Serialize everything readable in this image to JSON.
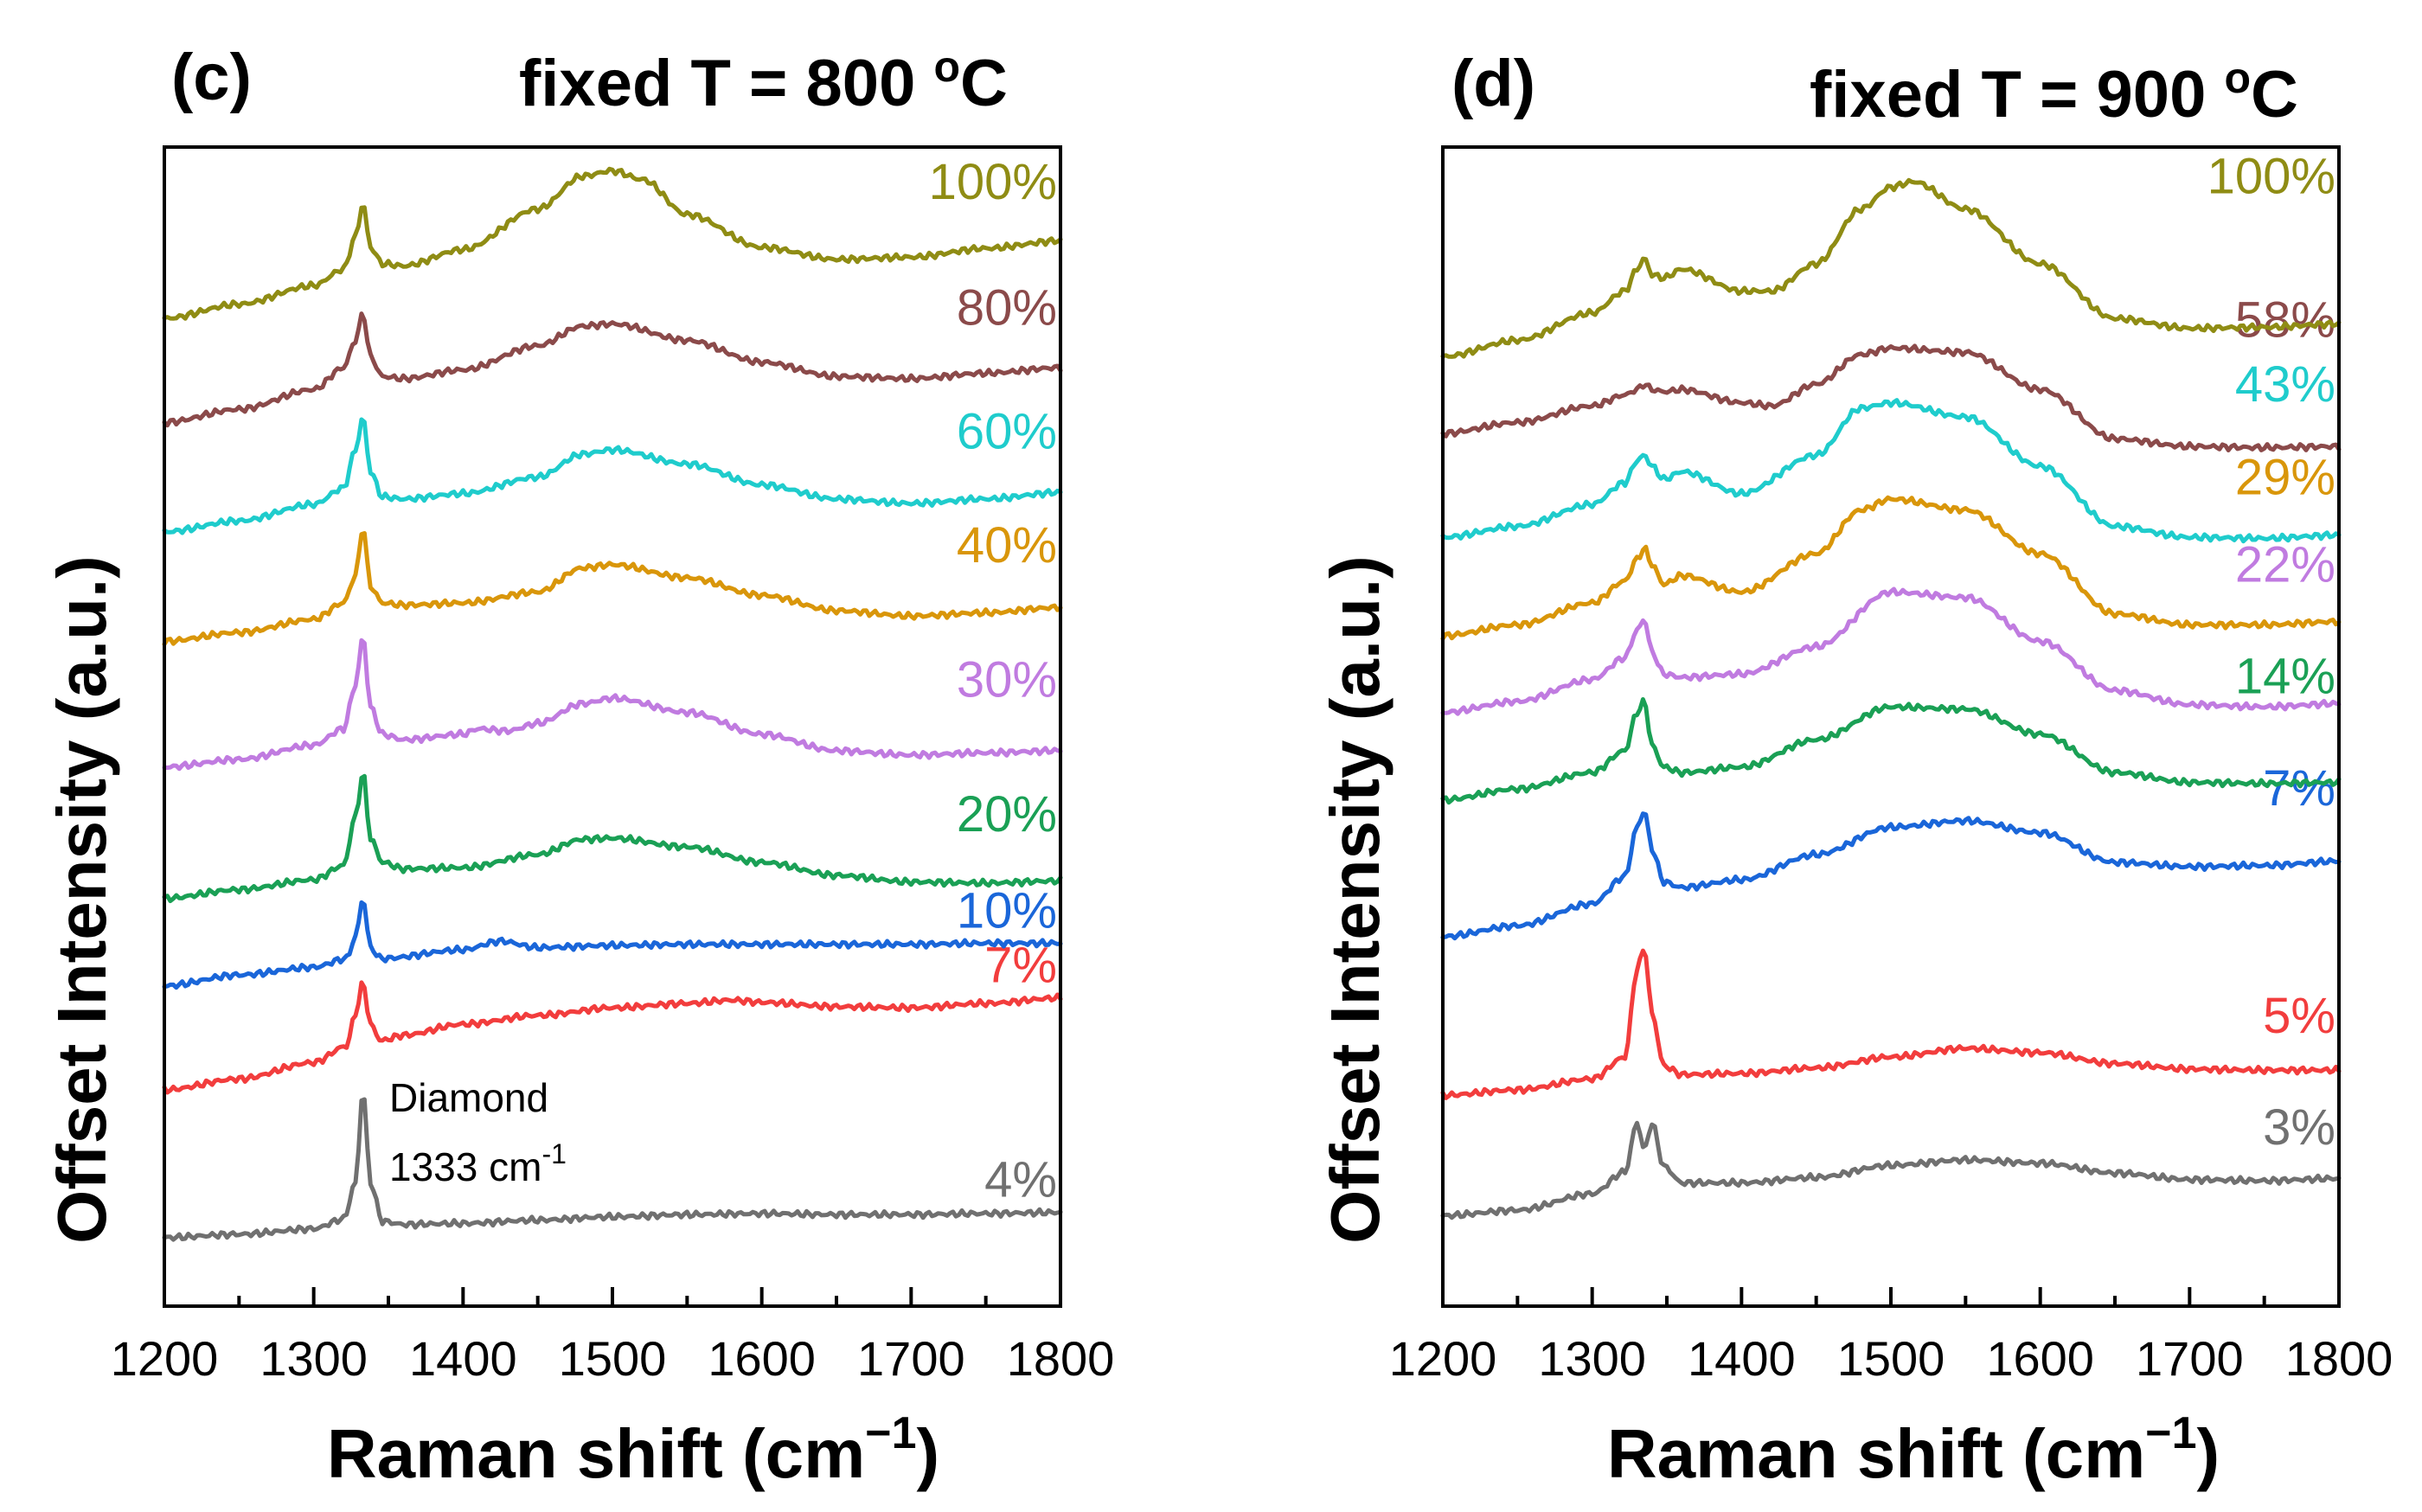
{
  "chart_data": [
    {
      "type": "line",
      "panel": "(c)",
      "title": "fixed T = 800 °C",
      "title_prefix": "fixed T = 800 ",
      "title_deg": "o",
      "title_unit": "C",
      "xlabel": "Raman shift (cm⁻¹)",
      "xlabel_base": "Raman shift (cm",
      "xlabel_sup": "−1",
      "xlabel_close": ")",
      "ylabel": "Offset Intensity (a.u.)",
      "xlim": [
        1200,
        1800
      ],
      "ylim": [
        0,
        100
      ],
      "xticks": [
        1200,
        1300,
        1400,
        1500,
        1600,
        1700,
        1800
      ],
      "annotation": {
        "line1": "Diamond",
        "line2_base": "1333 cm",
        "line2_sup": "-1"
      },
      "series": [
        {
          "name": "4%",
          "color": "#707070",
          "x": [
            1200,
            1250,
            1300,
            1320,
            1328,
            1333,
            1338,
            1346,
            1360,
            1400,
            1450,
            1500,
            1550,
            1600,
            1650,
            1700,
            1750,
            1800
          ],
          "y": [
            3.5,
            3.8,
            4.3,
            5.2,
            8.5,
            17.0,
            8.5,
            5.0,
            4.7,
            4.8,
            5.1,
            5.4,
            5.6,
            5.7,
            5.6,
            5.6,
            5.7,
            5.8
          ]
        },
        {
          "name": "7%",
          "color": "#f23d3d",
          "x": [
            1200,
            1250,
            1300,
            1322,
            1328,
            1333,
            1338,
            1345,
            1360,
            1400,
            1450,
            1500,
            1550,
            1580,
            1600,
            1650,
            1700,
            1750,
            1800
          ],
          "y": [
            17.0,
            18.0,
            19.5,
            21.0,
            24.0,
            26.8,
            23.0,
            21.5,
            22.0,
            23.0,
            23.8,
            24.5,
            24.9,
            25.2,
            25.0,
            24.6,
            24.5,
            24.9,
            25.4
          ]
        },
        {
          "name": "10%",
          "color": "#1a66d9",
          "x": [
            1200,
            1250,
            1300,
            1322,
            1328,
            1333,
            1338,
            1345,
            1400,
            1425,
            1450,
            1500,
            1550,
            1600,
            1650,
            1700,
            1750,
            1800
          ],
          "y": [
            26.5,
            27.5,
            28.2,
            29.0,
            31.0,
            34.5,
            30.0,
            29.0,
            29.8,
            30.6,
            30.0,
            30.2,
            30.3,
            30.3,
            30.3,
            30.3,
            30.4,
            30.4
          ]
        },
        {
          "name": "20%",
          "color": "#1aa055",
          "x": [
            1200,
            1250,
            1300,
            1320,
            1328,
            1333,
            1338,
            1346,
            1360,
            1400,
            1450,
            1480,
            1500,
            1550,
            1600,
            1650,
            1700,
            1750,
            1800
          ],
          "y": [
            34.5,
            35.3,
            36.2,
            37.5,
            42.0,
            46.0,
            40.0,
            37.8,
            37.2,
            37.3,
            38.5,
            39.9,
            40.0,
            39.2,
            37.8,
            36.6,
            36.0,
            35.9,
            36.1
          ]
        },
        {
          "name": "30%",
          "color": "#c07be0",
          "x": [
            1200,
            1250,
            1300,
            1320,
            1328,
            1333,
            1338,
            1346,
            1360,
            1400,
            1410,
            1430,
            1450,
            1480,
            1500,
            1550,
            1600,
            1650,
            1700,
            1750,
            1800
          ],
          "y": [
            46.5,
            47.2,
            48.5,
            50.0,
            54.0,
            58.5,
            52.0,
            49.5,
            49.0,
            49.5,
            50.0,
            49.8,
            50.5,
            52.3,
            52.8,
            51.5,
            49.5,
            48.0,
            47.6,
            47.8,
            48.0
          ]
        },
        {
          "name": "40%",
          "color": "#d9960a",
          "x": [
            1200,
            1250,
            1300,
            1320,
            1328,
            1333,
            1338,
            1346,
            1360,
            1400,
            1450,
            1480,
            1500,
            1550,
            1600,
            1650,
            1700,
            1750,
            1800
          ],
          "y": [
            58.0,
            58.8,
            60.0,
            61.5,
            64.0,
            68.5,
            63.0,
            61.5,
            61.3,
            61.5,
            62.5,
            64.7,
            65.0,
            63.8,
            62.2,
            60.8,
            60.3,
            60.6,
            61.1
          ]
        },
        {
          "name": "60%",
          "color": "#1fcccc",
          "x": [
            1200,
            1250,
            1300,
            1320,
            1328,
            1333,
            1338,
            1346,
            1360,
            1400,
            1450,
            1480,
            1500,
            1550,
            1600,
            1650,
            1700,
            1750,
            1800
          ],
          "y": [
            68.0,
            69.0,
            70.5,
            72.0,
            75.5,
            78.5,
            73.5,
            71.2,
            71.0,
            71.5,
            73.0,
            75.1,
            75.5,
            74.2,
            72.3,
            71.0,
            70.6,
            71.0,
            71.6
          ]
        },
        {
          "name": "80%",
          "color": "#8b4a4a",
          "x": [
            1200,
            1250,
            1300,
            1320,
            1328,
            1333,
            1338,
            1346,
            1360,
            1400,
            1450,
            1480,
            1500,
            1550,
            1600,
            1650,
            1700,
            1750,
            1800
          ],
          "y": [
            78.0,
            79.2,
            81.0,
            83.0,
            85.5,
            88.0,
            84.0,
            82.2,
            82.0,
            82.8,
            85.0,
            86.8,
            87.0,
            85.5,
            83.5,
            82.2,
            82.0,
            82.5,
            83.0
          ]
        },
        {
          "name": "100%",
          "color": "#8f8c14",
          "x": [
            1200,
            1250,
            1300,
            1320,
            1328,
            1333,
            1338,
            1346,
            1360,
            1400,
            1450,
            1480,
            1500,
            1520,
            1550,
            1600,
            1650,
            1700,
            1750,
            1800
          ],
          "y": [
            87.5,
            88.8,
            90.5,
            92.0,
            95.0,
            98.0,
            94.0,
            92.5,
            92.3,
            93.8,
            97.5,
            100.5,
            101.0,
            100.2,
            97.0,
            94.0,
            92.9,
            93.1,
            93.9,
            94.6
          ]
        }
      ],
      "labels_order": [
        "100%",
        "80%",
        "60%",
        "40%",
        "30%",
        "20%",
        "10%",
        "7%",
        "4%"
      ]
    },
    {
      "type": "line",
      "panel": "(d)",
      "title": "fixed T = 900 °C",
      "title_prefix": "fixed T = 900 ",
      "title_deg": "o",
      "title_unit": "C",
      "xlabel": "Raman shift (cm⁻¹)",
      "xlabel_base": "Raman shift (cm",
      "xlabel_sup": "−1",
      "xlabel_close": ")",
      "ylabel": "Offset Intensity (a.u.)",
      "xlim": [
        1200,
        1800
      ],
      "ylim": [
        0,
        100
      ],
      "xticks": [
        1200,
        1300,
        1400,
        1500,
        1600,
        1700,
        1800
      ],
      "series": [
        {
          "name": "3%",
          "color": "#707070",
          "x": [
            1200,
            1250,
            1300,
            1322,
            1330,
            1335,
            1340,
            1348,
            1360,
            1400,
            1450,
            1500,
            1550,
            1600,
            1650,
            1700,
            1750,
            1800
          ],
          "y": [
            5.5,
            6.0,
            7.5,
            9.5,
            14.0,
            11.5,
            14.0,
            10.0,
            8.5,
            8.5,
            9.0,
            10.1,
            10.6,
            10.3,
            9.4,
            8.8,
            8.7,
            8.9
          ]
        },
        {
          "name": "5%",
          "color": "#f23d3d",
          "x": [
            1200,
            1250,
            1300,
            1322,
            1330,
            1335,
            1340,
            1348,
            1360,
            1400,
            1450,
            1500,
            1550,
            1600,
            1650,
            1700,
            1750,
            1800
          ],
          "y": [
            16.5,
            17.0,
            18.0,
            20.0,
            28.0,
            30.0,
            24.0,
            19.2,
            18.4,
            18.5,
            19.0,
            20.0,
            20.8,
            20.4,
            19.4,
            18.9,
            18.8,
            18.8
          ]
        },
        {
          "name": "7%",
          "color": "#1a66d9",
          "x": [
            1200,
            1250,
            1300,
            1322,
            1330,
            1335,
            1340,
            1348,
            1360,
            1400,
            1450,
            1500,
            1550,
            1600,
            1650,
            1700,
            1750,
            1800
          ],
          "y": [
            31.0,
            32.0,
            34.0,
            36.5,
            41.0,
            42.5,
            39.0,
            36.0,
            35.5,
            36.2,
            38.5,
            41.0,
            41.6,
            40.5,
            37.8,
            37.4,
            37.5,
            37.9
          ]
        },
        {
          "name": "14%",
          "color": "#1aa055",
          "x": [
            1200,
            1250,
            1300,
            1322,
            1330,
            1335,
            1340,
            1348,
            1360,
            1400,
            1450,
            1500,
            1550,
            1600,
            1650,
            1700,
            1750,
            1800
          ],
          "y": [
            43.5,
            44.5,
            46.0,
            48.0,
            51.5,
            52.5,
            48.5,
            46.5,
            46.0,
            46.5,
            49.0,
            52.0,
            51.8,
            49.5,
            46.0,
            45.1,
            45.0,
            45.1
          ]
        },
        {
          "name": "22%",
          "color": "#c07be0",
          "x": [
            1200,
            1250,
            1300,
            1322,
            1330,
            1335,
            1340,
            1348,
            1360,
            1400,
            1450,
            1500,
            1550,
            1600,
            1650,
            1700,
            1750,
            1800
          ],
          "y": [
            51.5,
            52.5,
            54.5,
            56.5,
            59.0,
            60.0,
            57.0,
            55.0,
            54.7,
            55.0,
            57.5,
            62.5,
            62.0,
            58.0,
            53.5,
            52.2,
            52.0,
            52.3
          ]
        },
        {
          "name": "29%",
          "color": "#d9960a",
          "x": [
            1200,
            1250,
            1300,
            1322,
            1330,
            1335,
            1340,
            1348,
            1360,
            1400,
            1450,
            1480,
            1500,
            1550,
            1600,
            1650,
            1700,
            1750,
            1800
          ],
          "y": [
            58.5,
            59.5,
            61.5,
            63.5,
            65.5,
            66.5,
            65.0,
            63.2,
            64.0,
            62.5,
            66.0,
            70.0,
            71.0,
            70.0,
            66.0,
            60.5,
            59.5,
            59.5,
            59.8
          ]
        },
        {
          "name": "43%",
          "color": "#1fcccc",
          "x": [
            1200,
            1250,
            1300,
            1322,
            1330,
            1335,
            1340,
            1348,
            1360,
            1400,
            1450,
            1480,
            1500,
            1550,
            1600,
            1650,
            1700,
            1750,
            1800
          ],
          "y": [
            67.5,
            68.5,
            70.5,
            72.5,
            74.5,
            75.0,
            74.0,
            72.8,
            73.5,
            71.5,
            75.0,
            79.3,
            79.8,
            78.5,
            74.0,
            68.5,
            67.5,
            67.4,
            67.7
          ]
        },
        {
          "name": "58%",
          "color": "#8b4a4a",
          "x": [
            1200,
            1250,
            1300,
            1322,
            1330,
            1335,
            1340,
            1348,
            1360,
            1400,
            1420,
            1450,
            1480,
            1500,
            1550,
            1600,
            1650,
            1700,
            1750,
            1800
          ],
          "y": [
            77.0,
            78.0,
            79.5,
            80.5,
            81.0,
            81.5,
            81.0,
            80.8,
            81.0,
            79.8,
            79.5,
            81.5,
            84.2,
            84.8,
            84.4,
            81.0,
            76.5,
            75.8,
            75.7,
            75.8
          ]
        },
        {
          "name": "100%",
          "color": "#8f8c14",
          "x": [
            1200,
            1250,
            1300,
            1322,
            1330,
            1335,
            1340,
            1348,
            1360,
            1400,
            1420,
            1450,
            1480,
            1500,
            1515,
            1550,
            1600,
            1650,
            1700,
            1750,
            1800
          ],
          "y": [
            84.0,
            85.5,
            88.0,
            90.0,
            92.0,
            93.0,
            91.5,
            91.2,
            92.0,
            90.0,
            90.0,
            92.5,
            97.5,
            99.5,
            100.0,
            97.5,
            92.5,
            87.5,
            86.6,
            86.7,
            87.0
          ]
        }
      ],
      "labels_order": [
        "100%",
        "58%",
        "43%",
        "29%",
        "22%",
        "14%",
        "7%",
        "5%",
        "3%"
      ]
    }
  ]
}
